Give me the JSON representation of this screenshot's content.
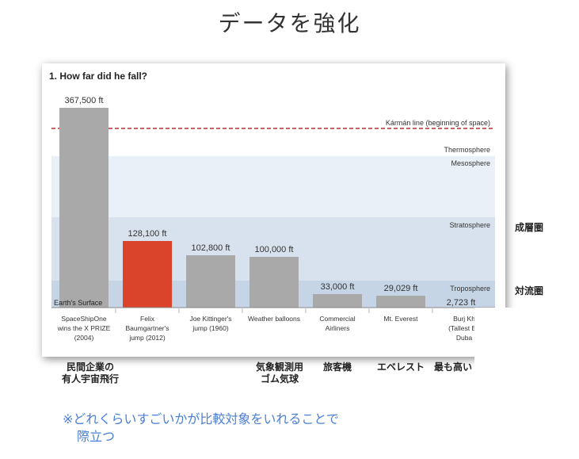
{
  "slide": {
    "title": "データを強化",
    "note_line1": "※どれくらいすごいかが比較対象をいれることで",
    "note_line2": "際立つ"
  },
  "side_labels": {
    "stratosphere_jp": "成層圏",
    "troposphere_jp": "対流圏"
  },
  "jp_captions": [
    {
      "text": "民間企業の\n有人宇宙飛行"
    },
    {
      "text": "気象観測用\nゴム気球"
    },
    {
      "text": "旅客機"
    },
    {
      "text": "エベレスト"
    },
    {
      "text": "最も高い"
    }
  ],
  "chart_data": {
    "type": "bar",
    "title": "1. How far did he fall?",
    "categories": [
      "SpaceShipOne wins the X PRIZE (2004)",
      "Felix Baumgartner's jump (2012)",
      "Joe Kittinger's jump (1960)",
      "Weather balloons",
      "Commercial Airliners",
      "Mt. Everest",
      "Burj Khalifa (Tallest Building) Dubai"
    ],
    "category_lines": [
      [
        "SpaceShipOne",
        "wins the X PRIZE",
        "(2004)"
      ],
      [
        "Felix",
        "Baumgartner's",
        "jump (2012)"
      ],
      [
        "Joe Kittinger's",
        "jump (1960)"
      ],
      [
        "Weather balloons"
      ],
      [
        "Commercial",
        "Airliners"
      ],
      [
        "Mt. Everest"
      ],
      [
        "Burj Kh",
        "(Tallest Bu",
        "Duba"
      ]
    ],
    "values": [
      367500,
      128100,
      102800,
      100000,
      33000,
      29029,
      2723
    ],
    "value_labels": [
      "367,500 ft",
      "128,100 ft",
      "102,800 ft",
      "100,000 ft",
      "33,000 ft",
      "29,029 ft",
      "2,723 ft"
    ],
    "highlight_index": 1,
    "colors": {
      "bar": "#a9a9a9",
      "highlight": "#d9442b",
      "karman_line": "#c0282c"
    },
    "reference_line": {
      "label": "Kármán line (beginning of space)"
    },
    "layers": [
      {
        "label": "Thermosphere",
        "color": "#ffffff"
      },
      {
        "label": "Mesosphere",
        "color": "#e9f0f7"
      },
      {
        "label": "Stratosphere",
        "color": "#d7e2ee"
      },
      {
        "label": "Troposphere",
        "color": "#c6d5e6"
      }
    ],
    "baseline_label": "Earth's Surface"
  }
}
